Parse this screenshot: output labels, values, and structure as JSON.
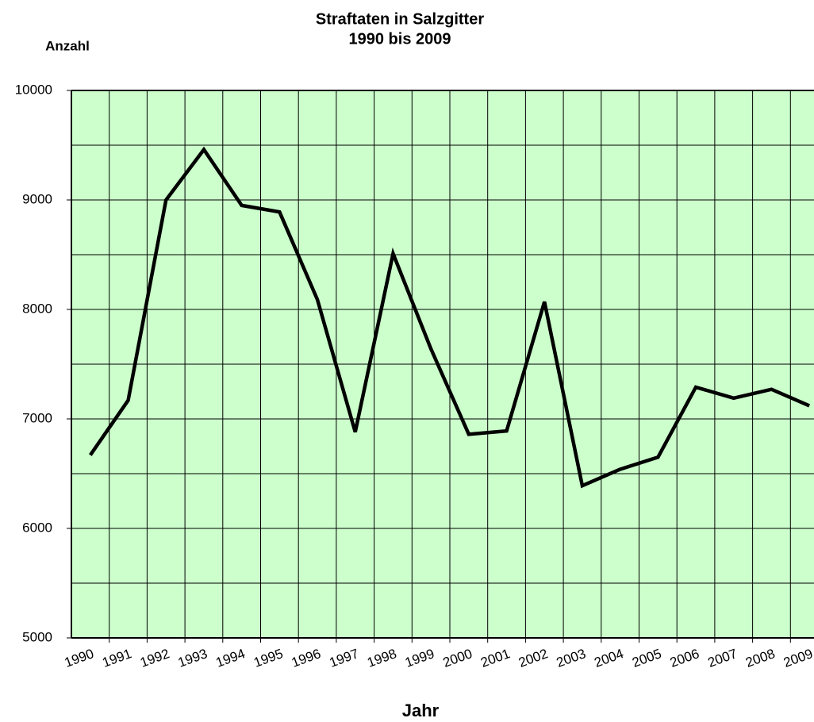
{
  "chart_data": {
    "type": "line",
    "title": "Straftaten in Salzgitter",
    "subtitle": "1990 bis 2009",
    "y_label": "Anzahl",
    "x_label": "Jahr",
    "categories": [
      "1990",
      "1991",
      "1992",
      "1993",
      "1994",
      "1995",
      "1996",
      "1997",
      "1998",
      "1999",
      "2000",
      "2001",
      "2002",
      "2003",
      "2004",
      "2005",
      "2006",
      "2007",
      "2008",
      "2009"
    ],
    "series": [
      {
        "name": "Straftaten",
        "color": "#000000",
        "values": [
          6670,
          7170,
          9000,
          9460,
          8950,
          8890,
          8090,
          6880,
          8510,
          7640,
          6860,
          6890,
          8070,
          6390,
          6540,
          6650,
          7290,
          7190,
          7270,
          7120
        ]
      }
    ],
    "ylim": [
      5000,
      10000
    ],
    "yticks": [
      5000,
      6000,
      7000,
      8000,
      9000,
      10000
    ],
    "grid": true,
    "minor_grid": true,
    "background": "#ccffcc"
  }
}
